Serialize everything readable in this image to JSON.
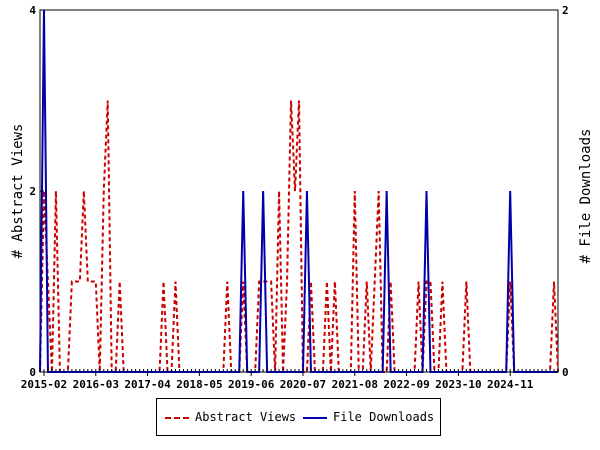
{
  "chart_data": {
    "type": "line",
    "xlabel": "",
    "ylabel_left": "# Abstract Views",
    "ylabel_right": "# File Downloads",
    "ylim_left": [
      0,
      4
    ],
    "ylim_right": [
      0,
      2
    ],
    "x_start": "2015-01",
    "x_end": "2025-11",
    "x_ticks": [
      "2015-02",
      "2016-03",
      "2017-04",
      "2018-05",
      "2019-06",
      "2020-07",
      "2021-08",
      "2022-09",
      "2023-10",
      "2024-11"
    ],
    "y_ticks_left": [
      0,
      2,
      4
    ],
    "y_ticks_right": [
      0,
      2
    ],
    "grid": false,
    "legend_position": "bottom",
    "series": [
      {
        "name": "Abstract Views",
        "axis": "left",
        "color": "#cc0000",
        "style": "dashed",
        "points": [
          [
            "2015-01",
            0
          ],
          [
            "2015-02",
            2
          ],
          [
            "2015-03",
            1
          ],
          [
            "2015-04",
            0
          ],
          [
            "2015-05",
            2
          ],
          [
            "2015-06",
            0
          ],
          [
            "2015-07",
            0
          ],
          [
            "2015-08",
            0
          ],
          [
            "2015-09",
            1
          ],
          [
            "2015-10",
            1
          ],
          [
            "2015-11",
            1
          ],
          [
            "2015-12",
            2
          ],
          [
            "2016-01",
            1
          ],
          [
            "2016-02",
            1
          ],
          [
            "2016-03",
            1
          ],
          [
            "2016-04",
            0
          ],
          [
            "2016-05",
            2
          ],
          [
            "2016-06",
            3
          ],
          [
            "2016-07",
            0
          ],
          [
            "2016-08",
            0
          ],
          [
            "2016-09",
            1
          ],
          [
            "2016-10",
            0
          ],
          [
            "2016-11",
            0
          ],
          [
            "2016-12",
            0
          ],
          [
            "2017-01",
            0
          ],
          [
            "2017-02",
            0
          ],
          [
            "2017-03",
            0
          ],
          [
            "2017-04",
            0
          ],
          [
            "2017-05",
            0
          ],
          [
            "2017-06",
            0
          ],
          [
            "2017-07",
            0
          ],
          [
            "2017-08",
            1
          ],
          [
            "2017-09",
            0
          ],
          [
            "2017-10",
            0
          ],
          [
            "2017-11",
            1
          ],
          [
            "2017-12",
            0
          ],
          [
            "2018-01",
            0
          ],
          [
            "2018-02",
            0
          ],
          [
            "2018-03",
            0
          ],
          [
            "2018-04",
            0
          ],
          [
            "2018-05",
            0
          ],
          [
            "2018-06",
            0
          ],
          [
            "2018-07",
            0
          ],
          [
            "2018-08",
            0
          ],
          [
            "2018-09",
            0
          ],
          [
            "2018-10",
            0
          ],
          [
            "2018-11",
            0
          ],
          [
            "2018-12",
            1
          ],
          [
            "2019-01",
            0
          ],
          [
            "2019-02",
            0
          ],
          [
            "2019-03",
            0
          ],
          [
            "2019-04",
            1
          ],
          [
            "2019-05",
            0
          ],
          [
            "2019-06",
            0
          ],
          [
            "2019-07",
            0
          ],
          [
            "2019-08",
            1
          ],
          [
            "2019-09",
            1
          ],
          [
            "2019-10",
            1
          ],
          [
            "2019-11",
            1
          ],
          [
            "2019-12",
            0
          ],
          [
            "2020-01",
            2
          ],
          [
            "2020-02",
            0
          ],
          [
            "2020-03",
            1
          ],
          [
            "2020-04",
            3
          ],
          [
            "2020-05",
            2
          ],
          [
            "2020-06",
            3
          ],
          [
            "2020-07",
            0
          ],
          [
            "2020-08",
            0
          ],
          [
            "2020-09",
            1
          ],
          [
            "2020-10",
            0
          ],
          [
            "2020-11",
            0
          ],
          [
            "2020-12",
            0
          ],
          [
            "2021-01",
            1
          ],
          [
            "2021-02",
            0
          ],
          [
            "2021-03",
            1
          ],
          [
            "2021-04",
            0
          ],
          [
            "2021-05",
            0
          ],
          [
            "2021-06",
            0
          ],
          [
            "2021-07",
            0
          ],
          [
            "2021-08",
            2
          ],
          [
            "2021-09",
            0
          ],
          [
            "2021-10",
            0
          ],
          [
            "2021-11",
            1
          ],
          [
            "2021-12",
            0
          ],
          [
            "2022-01",
            1
          ],
          [
            "2022-02",
            2
          ],
          [
            "2022-03",
            0
          ],
          [
            "2022-04",
            0
          ],
          [
            "2022-05",
            1
          ],
          [
            "2022-06",
            0
          ],
          [
            "2022-07",
            0
          ],
          [
            "2022-08",
            0
          ],
          [
            "2022-09",
            0
          ],
          [
            "2022-10",
            0
          ],
          [
            "2022-11",
            0
          ],
          [
            "2022-12",
            1
          ],
          [
            "2023-01",
            0
          ],
          [
            "2023-02",
            1
          ],
          [
            "2023-03",
            1
          ],
          [
            "2023-04",
            0
          ],
          [
            "2023-05",
            0
          ],
          [
            "2023-06",
            1
          ],
          [
            "2023-07",
            0
          ],
          [
            "2023-08",
            0
          ],
          [
            "2023-09",
            0
          ],
          [
            "2023-10",
            0
          ],
          [
            "2023-11",
            0
          ],
          [
            "2023-12",
            1
          ],
          [
            "2024-01",
            0
          ],
          [
            "2024-02",
            0
          ],
          [
            "2024-03",
            0
          ],
          [
            "2024-04",
            0
          ],
          [
            "2024-05",
            0
          ],
          [
            "2024-06",
            0
          ],
          [
            "2024-07",
            0
          ],
          [
            "2024-08",
            0
          ],
          [
            "2024-09",
            0
          ],
          [
            "2024-10",
            0
          ],
          [
            "2024-11",
            1
          ],
          [
            "2024-12",
            0
          ],
          [
            "2025-01",
            0
          ],
          [
            "2025-02",
            0
          ],
          [
            "2025-03",
            0
          ],
          [
            "2025-04",
            0
          ],
          [
            "2025-05",
            0
          ],
          [
            "2025-06",
            0
          ],
          [
            "2025-07",
            0
          ],
          [
            "2025-08",
            0
          ],
          [
            "2025-09",
            0
          ],
          [
            "2025-10",
            1
          ],
          [
            "2025-11",
            0
          ]
        ]
      },
      {
        "name": "File Downloads",
        "axis": "right",
        "color": "#0000aa",
        "style": "solid",
        "points": [
          [
            "2015-01",
            0
          ],
          [
            "2015-02",
            2
          ],
          [
            "2015-03",
            0
          ],
          [
            "2015-04",
            0
          ],
          [
            "2015-05",
            0
          ],
          [
            "2015-06",
            0
          ],
          [
            "2015-07",
            0
          ],
          [
            "2015-08",
            0
          ],
          [
            "2015-09",
            0
          ],
          [
            "2015-10",
            0
          ],
          [
            "2015-11",
            0
          ],
          [
            "2015-12",
            0
          ],
          [
            "2016-01",
            0
          ],
          [
            "2016-02",
            0
          ],
          [
            "2016-03",
            0
          ],
          [
            "2016-04",
            0
          ],
          [
            "2016-05",
            0
          ],
          [
            "2016-06",
            0
          ],
          [
            "2016-07",
            0
          ],
          [
            "2016-08",
            0
          ],
          [
            "2016-09",
            0
          ],
          [
            "2016-10",
            0
          ],
          [
            "2016-11",
            0
          ],
          [
            "2016-12",
            0
          ],
          [
            "2017-01",
            0
          ],
          [
            "2017-02",
            0
          ],
          [
            "2017-03",
            0
          ],
          [
            "2017-04",
            0
          ],
          [
            "2017-05",
            0
          ],
          [
            "2017-06",
            0
          ],
          [
            "2017-07",
            0
          ],
          [
            "2017-08",
            0
          ],
          [
            "2017-09",
            0
          ],
          [
            "2017-10",
            0
          ],
          [
            "2017-11",
            0
          ],
          [
            "2017-12",
            0
          ],
          [
            "2018-01",
            0
          ],
          [
            "2018-02",
            0
          ],
          [
            "2018-03",
            0
          ],
          [
            "2018-04",
            0
          ],
          [
            "2018-05",
            0
          ],
          [
            "2018-06",
            0
          ],
          [
            "2018-07",
            0
          ],
          [
            "2018-08",
            0
          ],
          [
            "2018-09",
            0
          ],
          [
            "2018-10",
            0
          ],
          [
            "2018-11",
            0
          ],
          [
            "2018-12",
            0
          ],
          [
            "2019-01",
            0
          ],
          [
            "2019-02",
            0
          ],
          [
            "2019-03",
            0
          ],
          [
            "2019-04",
            1
          ],
          [
            "2019-05",
            0
          ],
          [
            "2019-06",
            0
          ],
          [
            "2019-07",
            0
          ],
          [
            "2019-08",
            0
          ],
          [
            "2019-09",
            1
          ],
          [
            "2019-10",
            0
          ],
          [
            "2019-11",
            0
          ],
          [
            "2019-12",
            0
          ],
          [
            "2020-01",
            0
          ],
          [
            "2020-02",
            0
          ],
          [
            "2020-03",
            0
          ],
          [
            "2020-04",
            0
          ],
          [
            "2020-05",
            0
          ],
          [
            "2020-06",
            0
          ],
          [
            "2020-07",
            0
          ],
          [
            "2020-08",
            1
          ],
          [
            "2020-09",
            0
          ],
          [
            "2020-10",
            0
          ],
          [
            "2020-11",
            0
          ],
          [
            "2020-12",
            0
          ],
          [
            "2021-01",
            0
          ],
          [
            "2021-02",
            0
          ],
          [
            "2021-03",
            0
          ],
          [
            "2021-04",
            0
          ],
          [
            "2021-05",
            0
          ],
          [
            "2021-06",
            0
          ],
          [
            "2021-07",
            0
          ],
          [
            "2021-08",
            0
          ],
          [
            "2021-09",
            0
          ],
          [
            "2021-10",
            0
          ],
          [
            "2021-11",
            0
          ],
          [
            "2021-12",
            0
          ],
          [
            "2022-01",
            0
          ],
          [
            "2022-02",
            0
          ],
          [
            "2022-03",
            0
          ],
          [
            "2022-04",
            1
          ],
          [
            "2022-05",
            0
          ],
          [
            "2022-06",
            0
          ],
          [
            "2022-07",
            0
          ],
          [
            "2022-08",
            0
          ],
          [
            "2022-09",
            0
          ],
          [
            "2022-10",
            0
          ],
          [
            "2022-11",
            0
          ],
          [
            "2022-12",
            0
          ],
          [
            "2023-01",
            0
          ],
          [
            "2023-02",
            1
          ],
          [
            "2023-03",
            0
          ],
          [
            "2023-04",
            0
          ],
          [
            "2023-05",
            0
          ],
          [
            "2023-06",
            0
          ],
          [
            "2023-07",
            0
          ],
          [
            "2023-08",
            0
          ],
          [
            "2023-09",
            0
          ],
          [
            "2023-10",
            0
          ],
          [
            "2023-11",
            0
          ],
          [
            "2023-12",
            0
          ],
          [
            "2024-01",
            0
          ],
          [
            "2024-02",
            0
          ],
          [
            "2024-03",
            0
          ],
          [
            "2024-04",
            0
          ],
          [
            "2024-05",
            0
          ],
          [
            "2024-06",
            0
          ],
          [
            "2024-07",
            0
          ],
          [
            "2024-08",
            0
          ],
          [
            "2024-09",
            0
          ],
          [
            "2024-10",
            0
          ],
          [
            "2024-11",
            1
          ],
          [
            "2024-12",
            0
          ],
          [
            "2025-01",
            0
          ],
          [
            "2025-02",
            0
          ],
          [
            "2025-03",
            0
          ],
          [
            "2025-04",
            0
          ],
          [
            "2025-05",
            0
          ],
          [
            "2025-06",
            0
          ],
          [
            "2025-07",
            0
          ],
          [
            "2025-08",
            0
          ],
          [
            "2025-09",
            0
          ],
          [
            "2025-10",
            0
          ],
          [
            "2025-11",
            0
          ]
        ]
      }
    ]
  },
  "legend": {
    "items": [
      {
        "label": "Abstract Views",
        "color": "#cc0000",
        "style": "dashed"
      },
      {
        "label": "File Downloads",
        "color": "#0000aa",
        "style": "solid"
      }
    ]
  }
}
